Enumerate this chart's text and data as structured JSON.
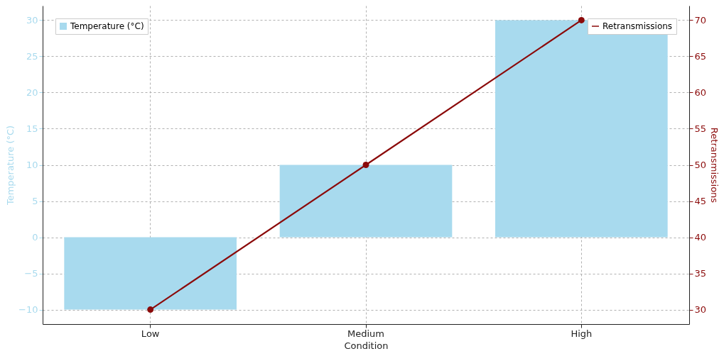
{
  "chart_data": {
    "type": "bar",
    "xlabel": "Condition",
    "ylabel": "Temperature (°C)",
    "y2label": "Retransmissions",
    "categories": [
      "Low",
      "Medium",
      "High"
    ],
    "series": [
      {
        "name": "Temperature (°C)",
        "color": "#a8daee",
        "values": [
          -10,
          10,
          30
        ]
      },
      {
        "name": "Retransmissions",
        "type": "line",
        "axis": "y2",
        "color": "#8b0a0a",
        "values": [
          30,
          50,
          70
        ]
      }
    ],
    "ylim": [
      -12,
      32
    ],
    "yticks": [
      -10,
      -5,
      0,
      5,
      10,
      15,
      20,
      25,
      30
    ],
    "y2lim": [
      28,
      72
    ],
    "y2ticks": [
      30,
      35,
      40,
      45,
      50,
      55,
      60,
      65,
      70
    ],
    "grid": true,
    "legend": "top",
    "marker": "circle",
    "line_style": "solid"
  }
}
